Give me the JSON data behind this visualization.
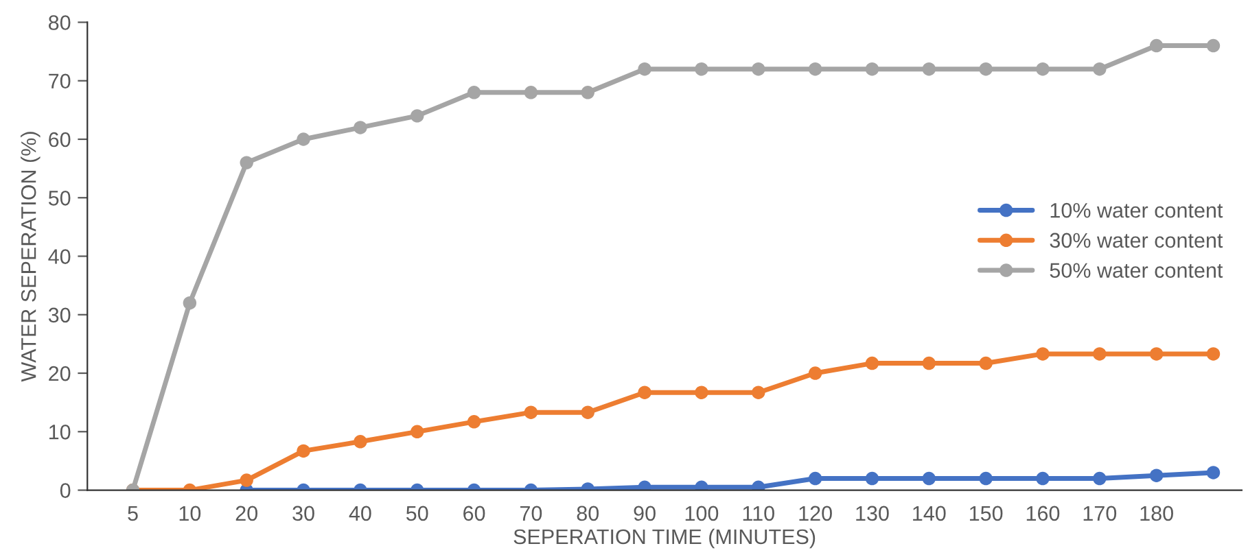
{
  "chart_data": {
    "type": "line",
    "xlabel": "SEPERATION TIME (MINUTES)",
    "ylabel": "WATER SEPERATION (%)",
    "categories": [
      "5",
      "10",
      "20",
      "30",
      "40",
      "50",
      "60",
      "70",
      "80",
      "90",
      "100",
      "110",
      "120",
      "130",
      "140",
      "150",
      "160",
      "170",
      "180",
      null
    ],
    "series": [
      {
        "name": "10% water content",
        "color": "#4472c4",
        "values": [
          null,
          null,
          0,
          0,
          0,
          0,
          0,
          0,
          0.2,
          0.5,
          0.5,
          0.5,
          2,
          2,
          2,
          2,
          2,
          2,
          2.5,
          3
        ]
      },
      {
        "name": "30% water content",
        "color": "#ed7d31",
        "values": [
          0,
          0,
          1.7,
          6.7,
          8.3,
          10,
          11.7,
          13.3,
          13.3,
          16.7,
          16.7,
          16.7,
          20,
          21.7,
          21.7,
          21.7,
          23.3,
          23.3,
          23.3,
          23.3
        ]
      },
      {
        "name": "50% water content",
        "color": "#a5a5a5",
        "values": [
          0,
          32,
          56,
          60,
          62,
          64,
          68,
          68,
          68,
          72,
          72,
          72,
          72,
          72,
          72,
          72,
          72,
          72,
          76,
          76
        ]
      }
    ],
    "ylim": [
      0,
      80
    ],
    "yticks": [
      0,
      10,
      20,
      30,
      40,
      50,
      60,
      70,
      80
    ],
    "grid": false,
    "legend": "right",
    "marker": "circle",
    "line_style": "solid"
  }
}
